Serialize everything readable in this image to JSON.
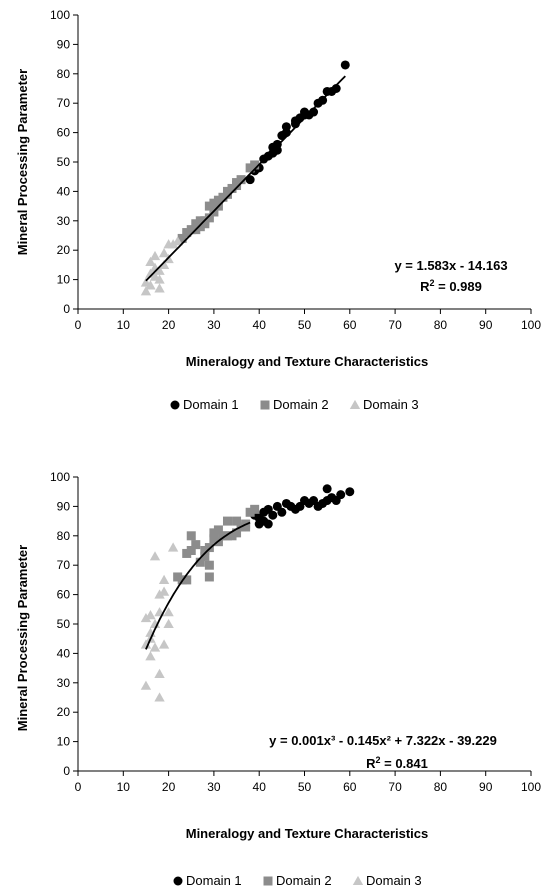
{
  "colors": {
    "domain1": "#000000",
    "domain2": "#8c8c8c",
    "domain3": "#c6c6c6",
    "axis": "#000000",
    "fit": "#000000"
  },
  "chart_data": [
    {
      "type": "scatter",
      "xlabel": "Mineralogy and Texture Characteristics",
      "ylabel": "Mineral Processing Parameter",
      "xlim": [
        0,
        100
      ],
      "ylim": [
        0,
        100
      ],
      "xticks": [
        0,
        10,
        20,
        30,
        40,
        50,
        60,
        70,
        80,
        90,
        100
      ],
      "yticks": [
        0,
        10,
        20,
        30,
        40,
        50,
        60,
        70,
        80,
        90,
        100
      ],
      "x_tick_labels": [
        "0",
        "10",
        "20",
        "30",
        "40",
        "50",
        "60",
        "70",
        "80",
        "90",
        "100"
      ],
      "y_tick_labels": [
        "0",
        "10",
        "20",
        "30",
        "40",
        "50",
        "60",
        "70",
        "80",
        "90",
        "100"
      ],
      "grid": false,
      "legend_position": "bottom",
      "equation": {
        "line1": "y = 1.583x - 14.163",
        "r2_prefix": "R",
        "r2_sup": "2",
        "r2_suffix": " = 0.989"
      },
      "fit": {
        "kind": "linear",
        "coefficients": [
          1.583,
          -14.163
        ],
        "x_range": [
          15,
          59
        ]
      },
      "series": [
        {
          "name": "Domain 1",
          "marker": "circle",
          "points": [
            [
              59,
              83
            ],
            [
              57,
              75
            ],
            [
              56,
              74
            ],
            [
              55,
              74
            ],
            [
              54,
              71
            ],
            [
              53,
              70
            ],
            [
              52,
              67
            ],
            [
              51,
              66
            ],
            [
              50,
              67
            ],
            [
              49,
              65
            ],
            [
              48,
              64
            ],
            [
              46,
              62
            ],
            [
              46,
              60
            ],
            [
              45,
              59
            ],
            [
              44,
              56
            ],
            [
              43,
              55
            ],
            [
              43,
              53
            ],
            [
              42,
              52
            ],
            [
              41,
              51
            ],
            [
              40,
              48
            ],
            [
              39,
              47
            ],
            [
              38,
              44
            ],
            [
              48,
              63
            ],
            [
              50,
              66
            ],
            [
              44,
              54
            ]
          ]
        },
        {
          "name": "Domain 2",
          "marker": "square",
          "points": [
            [
              39,
              49
            ],
            [
              38,
              48
            ],
            [
              36,
              44
            ],
            [
              35,
              43
            ],
            [
              34,
              41
            ],
            [
              33,
              40
            ],
            [
              32,
              38
            ],
            [
              31,
              37
            ],
            [
              30,
              36
            ],
            [
              29,
              35
            ],
            [
              30,
              33
            ],
            [
              29,
              31
            ],
            [
              28,
              30
            ],
            [
              27,
              30
            ],
            [
              27,
              28
            ],
            [
              26,
              27
            ],
            [
              25,
              27
            ],
            [
              24,
              26
            ],
            [
              23,
              24
            ],
            [
              33,
              39
            ],
            [
              35,
              42
            ],
            [
              31,
              35
            ],
            [
              28,
              29
            ],
            [
              26,
              29
            ]
          ]
        },
        {
          "name": "Domain 3",
          "marker": "triangle",
          "points": [
            [
              15,
              6
            ],
            [
              15,
              9
            ],
            [
              16,
              12
            ],
            [
              16,
              16
            ],
            [
              17,
              14
            ],
            [
              17,
              18
            ],
            [
              18,
              7
            ],
            [
              18,
              10
            ],
            [
              18,
              13
            ],
            [
              19,
              15
            ],
            [
              19,
              19
            ],
            [
              20,
              17
            ],
            [
              20,
              22
            ],
            [
              21,
              22
            ],
            [
              22,
              23
            ],
            [
              16,
              8
            ],
            [
              17,
              11
            ]
          ]
        }
      ]
    },
    {
      "type": "scatter",
      "xlabel": "Mineralogy and Texture Characteristics",
      "ylabel": "Mineral Processing Parameter",
      "xlim": [
        0,
        100
      ],
      "ylim": [
        0,
        100
      ],
      "xticks": [
        0,
        10,
        20,
        30,
        40,
        50,
        60,
        70,
        80,
        90,
        100
      ],
      "yticks": [
        0,
        10,
        20,
        30,
        40,
        50,
        60,
        70,
        80,
        90,
        100
      ],
      "x_tick_labels": [
        "0",
        "10",
        "20",
        "30",
        "40",
        "50",
        "60",
        "70",
        "80",
        "90",
        "100"
      ],
      "y_tick_labels": [
        "0",
        "10",
        "20",
        "30",
        "40",
        "50",
        "60",
        "70",
        "80",
        "90",
        "100"
      ],
      "grid": false,
      "legend_position": "bottom",
      "equation": {
        "line1": "y = 0.001x³ - 0.145x² + 7.322x - 39.229",
        "r2_prefix": "R",
        "r2_sup": "2",
        "r2_suffix": " = 0.841"
      },
      "fit": {
        "kind": "cubic",
        "coefficients": [
          0.001,
          -0.145,
          7.322,
          -39.229
        ],
        "x_range": [
          15,
          38
        ]
      },
      "series": [
        {
          "name": "Domain 1",
          "marker": "circle",
          "points": [
            [
              60,
              95
            ],
            [
              58,
              94
            ],
            [
              57,
              92
            ],
            [
              56,
              93
            ],
            [
              55,
              96
            ],
            [
              55,
              92
            ],
            [
              54,
              91
            ],
            [
              53,
              90
            ],
            [
              52,
              92
            ],
            [
              51,
              91
            ],
            [
              50,
              92
            ],
            [
              49,
              90
            ],
            [
              48,
              89
            ],
            [
              47,
              90
            ],
            [
              46,
              91
            ],
            [
              45,
              88
            ],
            [
              44,
              90
            ],
            [
              43,
              87
            ],
            [
              42,
              89
            ],
            [
              41,
              85
            ],
            [
              41,
              88
            ],
            [
              40,
              86
            ],
            [
              40,
              84
            ],
            [
              39,
              87
            ],
            [
              42,
              84
            ]
          ]
        },
        {
          "name": "Domain 2",
          "marker": "square",
          "points": [
            [
              39,
              89
            ],
            [
              38,
              88
            ],
            [
              37,
              84
            ],
            [
              36,
              83
            ],
            [
              35,
              85
            ],
            [
              34,
              80
            ],
            [
              33,
              85
            ],
            [
              32,
              80
            ],
            [
              31,
              82
            ],
            [
              30,
              81
            ],
            [
              29,
              76
            ],
            [
              29,
              70
            ],
            [
              29,
              66
            ],
            [
              28,
              75
            ],
            [
              28,
              73
            ],
            [
              27,
              71
            ],
            [
              26,
              77
            ],
            [
              25,
              75
            ],
            [
              25,
              80
            ],
            [
              24,
              74
            ],
            [
              24,
              65
            ],
            [
              23,
              65
            ],
            [
              22,
              66
            ],
            [
              30,
              79
            ],
            [
              31,
              78
            ],
            [
              35,
              81
            ],
            [
              37,
              83
            ],
            [
              33,
              80
            ]
          ]
        },
        {
          "name": "Domain 3",
          "marker": "triangle",
          "points": [
            [
              15,
              29
            ],
            [
              15,
              43
            ],
            [
              15,
              52
            ],
            [
              16,
              39
            ],
            [
              16,
              47
            ],
            [
              16,
              53
            ],
            [
              17,
              50
            ],
            [
              17,
              73
            ],
            [
              18,
              25
            ],
            [
              18,
              33
            ],
            [
              18,
              54
            ],
            [
              19,
              61
            ],
            [
              19,
              65
            ],
            [
              19,
              43
            ],
            [
              20,
              50
            ],
            [
              20,
              54
            ],
            [
              21,
              76
            ],
            [
              18,
              60
            ],
            [
              16,
              45
            ],
            [
              17,
              42
            ]
          ]
        }
      ]
    }
  ]
}
